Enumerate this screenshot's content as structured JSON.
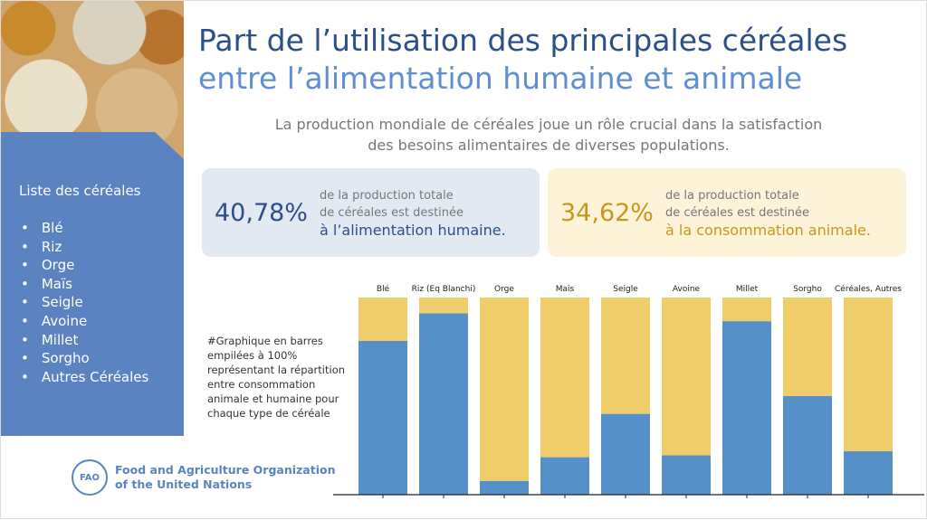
{
  "title_line1": "Part de l’utilisation des principales céréales",
  "title_line2": "entre l’alimentation humaine et animale",
  "subtitle_line1": "La production mondiale de céréales joue un rôle crucial dans la satisfaction",
  "subtitle_line2": "des besoins alimentaires de diverses populations.",
  "sidebar": {
    "heading": "Liste des céréales",
    "items": [
      "Blé",
      "Riz",
      "Orge",
      "Maïs",
      "Seigle",
      "Avoine",
      "Millet",
      "Sorgho",
      "Autres Céréales"
    ]
  },
  "cards": [
    {
      "value": "40,78%",
      "line1": "de la production totale",
      "line2": "de céréales est destinée",
      "highlight": "à l’alimentation humaine."
    },
    {
      "value": "34,62%",
      "line1": "de la production totale",
      "line2": "de céréales est destinée",
      "highlight": "à la consommation animale."
    }
  ],
  "note": "#Graphique en barres empilées à 100% représentant la répartition entre consommation animale et humaine pour chaque type de céréale",
  "org": {
    "logo": "FAO",
    "line1": "Food and Agriculture Organization",
    "line2": "of the United Nations"
  },
  "chart_data": {
    "type": "bar",
    "stacked": true,
    "ylim": [
      0,
      100
    ],
    "categories": [
      "Blé",
      "Riz (Eq Blanchi)",
      "Orge",
      "Mais",
      "Seigle",
      "Avoine",
      "Millet",
      "Sorgho",
      "Céréales, Autres"
    ],
    "series": [
      {
        "values": [
          78,
          92,
          7,
          19,
          41,
          20,
          88,
          50,
          22
        ],
        "color": "#5590c8"
      },
      {
        "values": [
          22,
          8,
          93,
          81,
          59,
          80,
          12,
          50,
          78
        ],
        "color": "#eecd6a"
      }
    ]
  }
}
